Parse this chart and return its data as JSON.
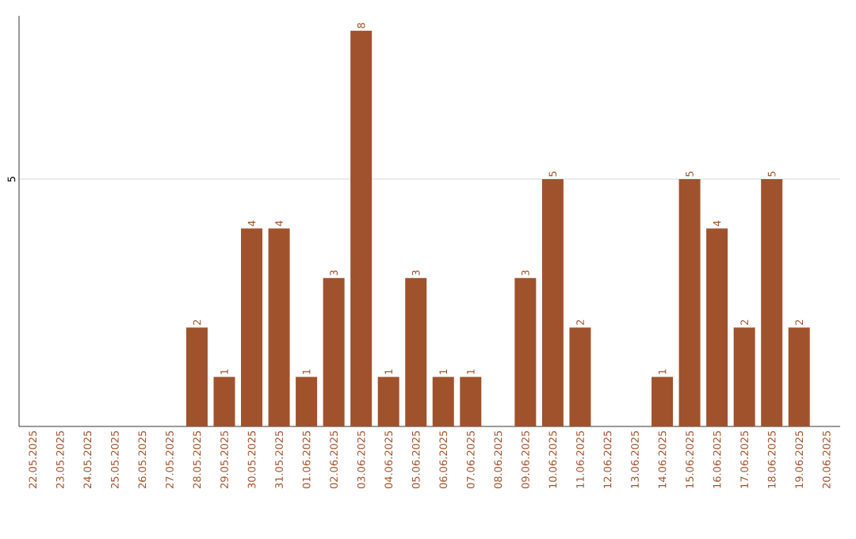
{
  "chart_data": {
    "type": "bar",
    "categories": [
      "22.05.2025",
      "23.05.2025",
      "24.05.2025",
      "25.05.2025",
      "26.05.2025",
      "27.05.2025",
      "28.05.2025",
      "29.05.2025",
      "30.05.2025",
      "31.05.2025",
      "01.06.2025",
      "02.06.2025",
      "03.06.2025",
      "04.06.2025",
      "05.06.2025",
      "06.06.2025",
      "07.06.2025",
      "08.06.2025",
      "09.06.2025",
      "10.06.2025",
      "11.06.2025",
      "12.06.2025",
      "13.06.2025",
      "14.06.2025",
      "15.06.2025",
      "16.06.2025",
      "17.06.2025",
      "18.06.2025",
      "19.06.2025",
      "20.06.2025"
    ],
    "values": [
      0,
      0,
      0,
      0,
      0,
      0,
      2,
      1,
      4,
      4,
      1,
      3,
      8,
      1,
      3,
      1,
      1,
      0,
      3,
      5,
      2,
      0,
      0,
      1,
      5,
      4,
      2,
      5,
      2,
      0
    ],
    "value_labels": [
      null,
      null,
      null,
      null,
      null,
      null,
      "2",
      "1",
      "4",
      "4",
      "1",
      "3",
      "8",
      "1",
      "3",
      "1",
      "1",
      null,
      "3",
      "5",
      "2",
      null,
      null,
      "1",
      "5",
      "4",
      "2",
      "5",
      "2",
      null
    ],
    "color": "#a0522d",
    "ylim": [
      0,
      8.3
    ],
    "yticks": [
      5
    ],
    "grid": "y"
  }
}
